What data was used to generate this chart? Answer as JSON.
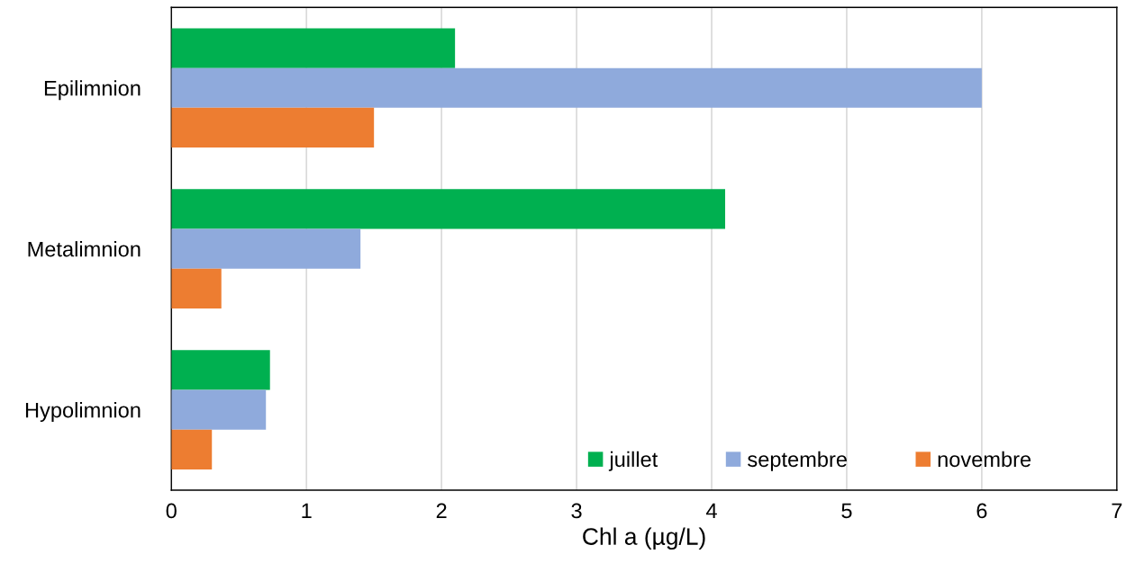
{
  "chart_data": {
    "type": "bar",
    "orientation": "horizontal",
    "xlabel": "Chl a (µg/L)",
    "categories": [
      "Epilimnion",
      "Metalimnion",
      "Hypolimnion"
    ],
    "series": [
      {
        "name": "juillet",
        "color": "#00b050",
        "values": [
          2.1,
          4.1,
          0.73
        ]
      },
      {
        "name": "septembre",
        "color": "#8faadc",
        "values": [
          6.0,
          1.4,
          0.7
        ]
      },
      {
        "name": "novembre",
        "color": "#ed7d31",
        "values": [
          1.5,
          0.37,
          0.3
        ]
      }
    ],
    "xlim": [
      0,
      7
    ],
    "xticks": [
      0,
      1,
      2,
      3,
      4,
      5,
      6,
      7
    ],
    "grid": "x",
    "legend": "bottom right"
  }
}
